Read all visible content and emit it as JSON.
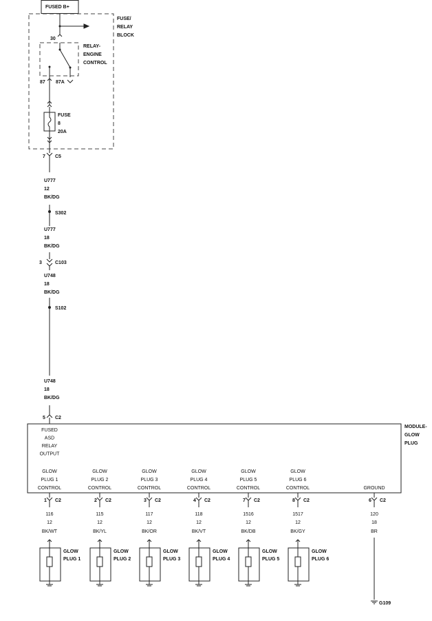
{
  "source": {
    "label": "FUSED B+"
  },
  "fuse_relay_block": {
    "label": [
      "FUSE/",
      "RELAY",
      "BLOCK"
    ],
    "relay": {
      "label": [
        "RELAY-",
        "ENGINE",
        "CONTROL"
      ],
      "pins": [
        "30",
        "87",
        "87A"
      ]
    },
    "fuse": {
      "label": [
        "FUSE",
        "8",
        "20A"
      ]
    },
    "output": {
      "pin": "7",
      "connector": "C5"
    }
  },
  "wires": [
    {
      "circuit": "U777",
      "gauge": "12",
      "color": "BK/DG"
    },
    {
      "circuit": "U777",
      "gauge": "18",
      "color": "BK/DG"
    },
    {
      "circuit": "U748",
      "gauge": "18",
      "color": "BK/DG"
    },
    {
      "circuit": "U748",
      "gauge": "18",
      "color": "BK/DG"
    }
  ],
  "splices": [
    "S302",
    "S102"
  ],
  "inline_connector": {
    "pin": "3",
    "name": "C103"
  },
  "module": {
    "label": [
      "MODULE-",
      "GLOW",
      "PLUG"
    ],
    "input": {
      "pin": "5",
      "connector": "C2",
      "label": [
        "FUSED",
        "ASD",
        "RELAY",
        "OUTPUT"
      ]
    },
    "outputs": [
      {
        "label": [
          "GLOW",
          "PLUG 1",
          "CONTROL"
        ],
        "pin": "1",
        "connector": "C2",
        "circuit": "116",
        "gauge": "12",
        "color": "BK/WT",
        "wire_color": "#8a8a8a",
        "load": [
          "GLOW",
          "PLUG 1"
        ]
      },
      {
        "label": [
          "GLOW",
          "PLUG 2",
          "CONTROL"
        ],
        "pin": "2",
        "connector": "C2",
        "circuit": "115",
        "gauge": "12",
        "color": "BK/YL",
        "wire_color": "#a09a50",
        "load": [
          "GLOW",
          "PLUG 2"
        ]
      },
      {
        "label": [
          "GLOW",
          "PLUG 3",
          "CONTROL"
        ],
        "pin": "3",
        "connector": "C2",
        "circuit": "117",
        "gauge": "12",
        "color": "BK/OR",
        "wire_color": "#b8866a",
        "load": [
          "GLOW",
          "PLUG 3"
        ]
      },
      {
        "label": [
          "GLOW",
          "PLUG 4",
          "CONTROL"
        ],
        "pin": "4",
        "connector": "C2",
        "circuit": "118",
        "gauge": "12",
        "color": "BK/VT",
        "wire_color": "#b070b8",
        "load": [
          "GLOW",
          "PLUG 4"
        ]
      },
      {
        "label": [
          "GLOW",
          "PLUG 5",
          "CONTROL"
        ],
        "pin": "7",
        "connector": "C2",
        "circuit": "1516",
        "gauge": "12",
        "color": "BK/DB",
        "wire_color": "#7a8a9a",
        "load": [
          "GLOW",
          "PLUG 5"
        ]
      },
      {
        "label": [
          "GLOW",
          "PLUG 6",
          "CONTROL"
        ],
        "pin": "8",
        "connector": "C2",
        "circuit": "1517",
        "gauge": "12",
        "color": "BK/GY",
        "wire_color": "#909090",
        "load": [
          "GLOW",
          "PLUG 6"
        ]
      }
    ],
    "ground": {
      "label": "GROUND",
      "pin": "6",
      "connector": "C2",
      "circuit": "120",
      "gauge": "18",
      "color": "BR",
      "wire_color": "#8a6a2a",
      "ground_name": "G109"
    }
  }
}
